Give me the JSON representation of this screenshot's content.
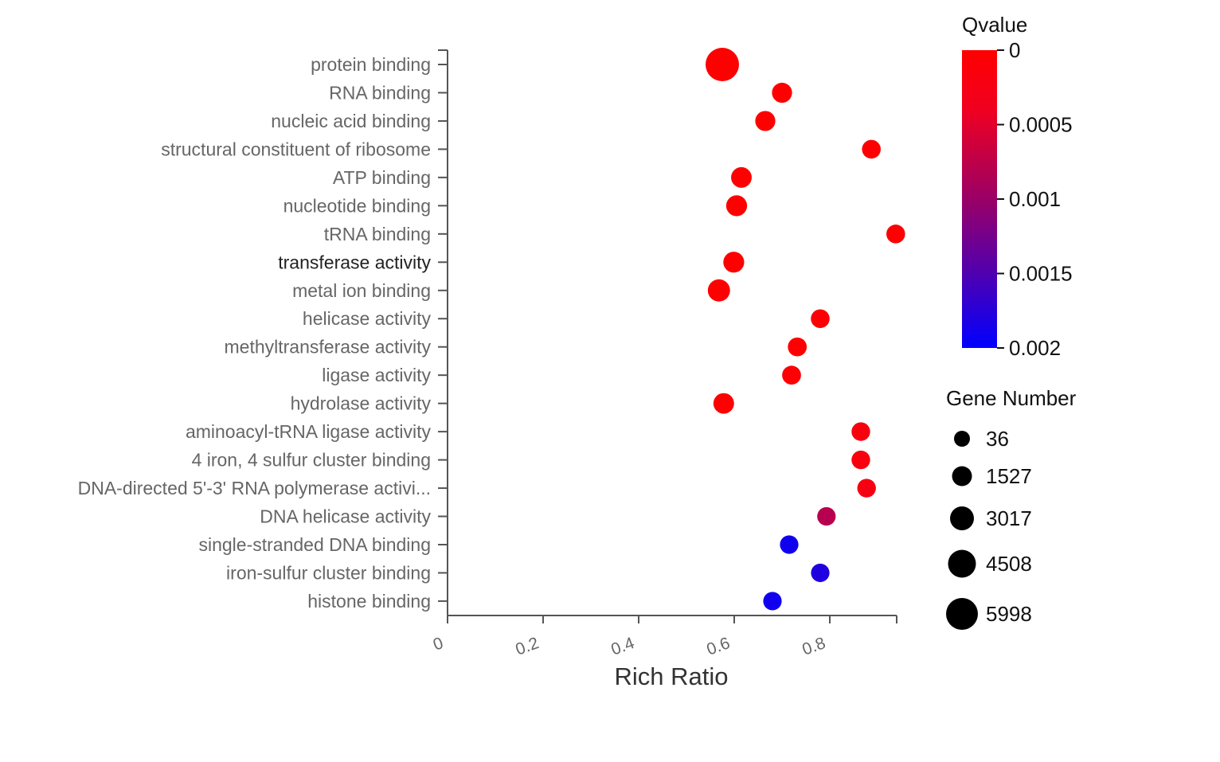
{
  "chart_data": {
    "type": "scatter",
    "xlabel": "Rich Ratio",
    "x_ticks": [
      "0",
      "0.2",
      "0.4",
      "0.6",
      "0.8"
    ],
    "xlim": [
      0,
      0.94
    ],
    "categories": [
      "protein binding",
      "RNA binding",
      "nucleic acid binding",
      "structural constituent of ribosome",
      "ATP binding",
      "nucleotide binding",
      "tRNA binding",
      "transferase activity",
      "metal ion binding",
      "helicase activity",
      "methyltransferase activity",
      "ligase activity",
      "hydrolase activity",
      "aminoacyl-tRNA ligase activity",
      "4 iron, 4 sulfur cluster binding",
      "DNA-directed 5'-3' RNA polymerase activi...",
      "DNA helicase activity",
      "single-stranded DNA binding",
      "iron-sulfur cluster binding",
      "histone binding"
    ],
    "highlighted_category": "transferase activity",
    "points": [
      {
        "x": 0.575,
        "qvalue": 1e-05,
        "gene_number": 5998
      },
      {
        "x": 0.7,
        "qvalue": 1e-05,
        "gene_number": 1000
      },
      {
        "x": 0.665,
        "qvalue": 1e-05,
        "gene_number": 1000
      },
      {
        "x": 0.887,
        "qvalue": 2e-05,
        "gene_number": 500
      },
      {
        "x": 0.615,
        "qvalue": 1e-05,
        "gene_number": 1200
      },
      {
        "x": 0.605,
        "qvalue": 1e-05,
        "gene_number": 1300
      },
      {
        "x": 0.938,
        "qvalue": 2e-05,
        "gene_number": 500
      },
      {
        "x": 0.599,
        "qvalue": 1e-05,
        "gene_number": 1300
      },
      {
        "x": 0.568,
        "qvalue": 1e-05,
        "gene_number": 1800
      },
      {
        "x": 0.78,
        "qvalue": 5e-05,
        "gene_number": 500
      },
      {
        "x": 0.732,
        "qvalue": 3e-05,
        "gene_number": 550
      },
      {
        "x": 0.72,
        "qvalue": 5e-05,
        "gene_number": 550
      },
      {
        "x": 0.578,
        "qvalue": 1e-05,
        "gene_number": 1200
      },
      {
        "x": 0.865,
        "qvalue": 0.00018,
        "gene_number": 450
      },
      {
        "x": 0.865,
        "qvalue": 0.00018,
        "gene_number": 450
      },
      {
        "x": 0.877,
        "qvalue": 0.00022,
        "gene_number": 450
      },
      {
        "x": 0.793,
        "qvalue": 0.0008,
        "gene_number": 400
      },
      {
        "x": 0.715,
        "qvalue": 0.0019,
        "gene_number": 400
      },
      {
        "x": 0.78,
        "qvalue": 0.0018,
        "gene_number": 400
      },
      {
        "x": 0.68,
        "qvalue": 0.0019,
        "gene_number": 400
      }
    ],
    "color_legend": {
      "title": "Qvalue",
      "ticks": [
        "0",
        "0.0005",
        "0.001",
        "0.0015",
        "0.002"
      ],
      "range": [
        0,
        0.002
      ],
      "colors": [
        "#ff0000",
        "#0000ff"
      ]
    },
    "size_legend": {
      "title": "Gene Number",
      "values": [
        36,
        1527,
        3017,
        4508,
        5998
      ],
      "labels": [
        "36",
        "1527",
        "3017",
        "4508",
        "5998"
      ]
    }
  }
}
